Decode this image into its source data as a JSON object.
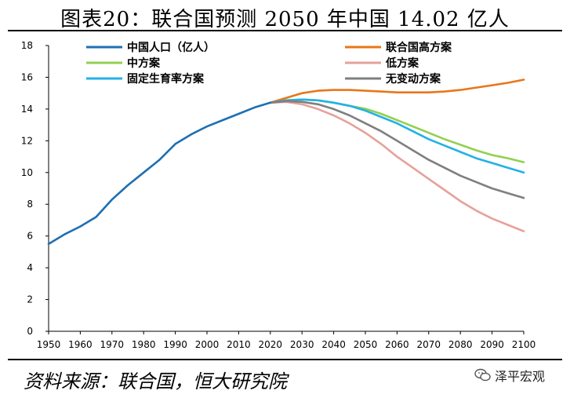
{
  "header": {
    "title": "图表20：联合国预测 2050 年中国 14.02 亿人"
  },
  "footer": {
    "source": "资料来源：联合国，恒大研究院",
    "logo_text": "泽平宏观"
  },
  "colors": {
    "history": "#1f6fb2",
    "high": "#e9761a",
    "medium": "#92d050",
    "low": "#e6a19a",
    "constant": "#22b1e8",
    "zero_migration": "#7f7f7f"
  },
  "chart_data": {
    "type": "line",
    "title": "联合国预测 2050 年中国 14.02 亿人",
    "xlabel": "",
    "ylabel": "",
    "xlim": [
      1950,
      2100
    ],
    "ylim": [
      0,
      18
    ],
    "xticks": [
      1950,
      1960,
      1970,
      1980,
      1990,
      2000,
      2010,
      2020,
      2030,
      2040,
      2050,
      2060,
      2070,
      2080,
      2090,
      2100
    ],
    "yticks": [
      0,
      2,
      4,
      6,
      8,
      10,
      12,
      14,
      16,
      18
    ],
    "grid": false,
    "series": [
      {
        "key": "history",
        "name": "中国人口（亿人）",
        "x": [
          1950,
          1955,
          1960,
          1965,
          1970,
          1975,
          1980,
          1985,
          1990,
          1995,
          2000,
          2005,
          2010,
          2015,
          2020
        ],
        "values": [
          5.5,
          6.1,
          6.6,
          7.2,
          8.3,
          9.2,
          10.0,
          10.8,
          11.8,
          12.4,
          12.9,
          13.3,
          13.7,
          14.1,
          14.4
        ]
      },
      {
        "key": "high",
        "name": "联合国高方案",
        "x": [
          2020,
          2025,
          2030,
          2035,
          2040,
          2045,
          2050,
          2055,
          2060,
          2065,
          2070,
          2075,
          2080,
          2085,
          2090,
          2095,
          2100
        ],
        "values": [
          14.4,
          14.7,
          15.0,
          15.15,
          15.2,
          15.2,
          15.15,
          15.1,
          15.05,
          15.05,
          15.05,
          15.1,
          15.2,
          15.35,
          15.5,
          15.65,
          15.85
        ]
      },
      {
        "key": "medium",
        "name": "中方案",
        "x": [
          2020,
          2025,
          2030,
          2035,
          2040,
          2045,
          2050,
          2055,
          2060,
          2065,
          2070,
          2075,
          2080,
          2085,
          2090,
          2095,
          2100
        ],
        "values": [
          14.4,
          14.55,
          14.6,
          14.55,
          14.4,
          14.2,
          14.02,
          13.7,
          13.3,
          12.9,
          12.5,
          12.1,
          11.75,
          11.4,
          11.1,
          10.9,
          10.65
        ]
      },
      {
        "key": "low",
        "name": "低方案",
        "x": [
          2020,
          2025,
          2030,
          2035,
          2040,
          2045,
          2050,
          2055,
          2060,
          2065,
          2070,
          2075,
          2080,
          2085,
          2090,
          2095,
          2100
        ],
        "values": [
          14.4,
          14.45,
          14.3,
          14.0,
          13.6,
          13.1,
          12.5,
          11.8,
          11.0,
          10.3,
          9.6,
          8.9,
          8.2,
          7.6,
          7.1,
          6.7,
          6.3
        ]
      },
      {
        "key": "constant",
        "name": "固定生育率方案",
        "x": [
          2020,
          2025,
          2030,
          2035,
          2040,
          2045,
          2050,
          2055,
          2060,
          2065,
          2070,
          2075,
          2080,
          2085,
          2090,
          2095,
          2100
        ],
        "values": [
          14.4,
          14.55,
          14.6,
          14.55,
          14.4,
          14.2,
          13.9,
          13.5,
          13.1,
          12.6,
          12.1,
          11.7,
          11.3,
          10.9,
          10.6,
          10.3,
          10.0
        ]
      },
      {
        "key": "zero_migration",
        "name": "无变动方案",
        "x": [
          2020,
          2025,
          2030,
          2035,
          2040,
          2045,
          2050,
          2055,
          2060,
          2065,
          2070,
          2075,
          2080,
          2085,
          2090,
          2095,
          2100
        ],
        "values": [
          14.4,
          14.5,
          14.45,
          14.3,
          14.0,
          13.6,
          13.1,
          12.6,
          12.0,
          11.4,
          10.8,
          10.3,
          9.8,
          9.4,
          9.0,
          8.7,
          8.4
        ]
      }
    ],
    "legend_placement": "top"
  }
}
